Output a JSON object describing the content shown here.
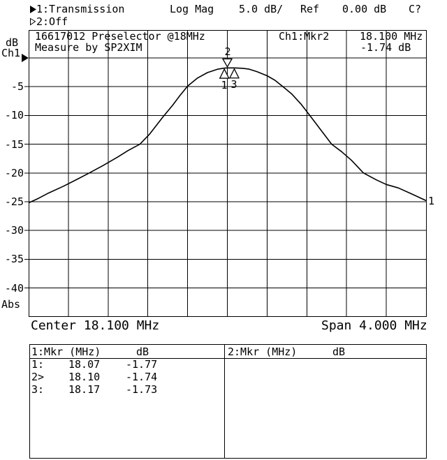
{
  "header": {
    "trace1": "1:Transmission",
    "format": "Log Mag",
    "scale": "5.0 dB/",
    "ref_label": "Ref",
    "ref_value": "0.00 dB",
    "cal_status": "C?",
    "trace2": "2:Off"
  },
  "y_axis": {
    "unit": "dB",
    "channel": "Ch1",
    "mode": "Abs"
  },
  "plot": {
    "title_line1": "16617012 Preselector @18MHz",
    "title_line2": "Measure by SP2XIM",
    "marker_readout": {
      "channel": "Ch1:Mkr2",
      "freq": "18.100 MHz",
      "level": "-1.74 dB"
    }
  },
  "x_axis": {
    "center": "Center 18.100 MHz",
    "span": "Span 4.000 MHz"
  },
  "marker_table": {
    "left": {
      "header": "1:Mkr (MHz)",
      "unit": "dB",
      "rows": [
        {
          "n": "1:",
          "freq": "18.07",
          "db": "-1.77"
        },
        {
          "n": "2>",
          "freq": "18.10",
          "db": "-1.74"
        },
        {
          "n": "3:",
          "freq": "18.17",
          "db": "-1.73"
        }
      ]
    },
    "right": {
      "header": "2:Mkr (MHz)",
      "unit": "dB",
      "rows": []
    }
  },
  "chart_data": {
    "type": "line",
    "title": "16617012 Preselector @18MHz",
    "subtitle": "Measure by SP2XIM",
    "x_range_mhz": [
      16.1,
      20.1
    ],
    "x_center_mhz": 18.1,
    "x_span_mhz": 4.0,
    "grid_x_divisions": 10,
    "ref_db": 0.0,
    "db_per_div": 5,
    "y_ticks_db": [
      -5,
      -10,
      -15,
      -20,
      -25,
      -30,
      -35,
      -40
    ],
    "y_mode": "Abs",
    "trace_name": "1",
    "trace_points_mhz_db": [
      [
        16.1,
        -25.2
      ],
      [
        16.2,
        -24.4
      ],
      [
        16.3,
        -23.5
      ],
      [
        16.45,
        -22.3
      ],
      [
        16.6,
        -21.0
      ],
      [
        16.71,
        -20.0
      ],
      [
        16.85,
        -18.7
      ],
      [
        17.0,
        -17.2
      ],
      [
        17.1,
        -16.1
      ],
      [
        17.22,
        -15.0
      ],
      [
        17.32,
        -13.2
      ],
      [
        17.41,
        -11.2
      ],
      [
        17.45,
        -10.3
      ],
      [
        17.55,
        -8.2
      ],
      [
        17.62,
        -6.6
      ],
      [
        17.7,
        -4.9
      ],
      [
        17.8,
        -3.5
      ],
      [
        17.9,
        -2.55
      ],
      [
        18.0,
        -1.97
      ],
      [
        18.07,
        -1.77
      ],
      [
        18.1,
        -1.74
      ],
      [
        18.17,
        -1.73
      ],
      [
        18.25,
        -1.8
      ],
      [
        18.32,
        -1.95
      ],
      [
        18.4,
        -2.4
      ],
      [
        18.5,
        -3.1
      ],
      [
        18.58,
        -3.9
      ],
      [
        18.66,
        -5.0
      ],
      [
        18.75,
        -6.3
      ],
      [
        18.84,
        -8.0
      ],
      [
        18.93,
        -10.0
      ],
      [
        19.04,
        -12.5
      ],
      [
        19.15,
        -15.0
      ],
      [
        19.25,
        -16.3
      ],
      [
        19.35,
        -17.8
      ],
      [
        19.47,
        -20.0
      ],
      [
        19.6,
        -21.2
      ],
      [
        19.7,
        -22.0
      ],
      [
        19.82,
        -22.6
      ],
      [
        19.95,
        -23.6
      ],
      [
        20.1,
        -24.8
      ]
    ],
    "markers": [
      {
        "n": "1",
        "mhz": 18.07,
        "db": -1.77,
        "shape": "up",
        "active": false
      },
      {
        "n": "2",
        "mhz": 18.1,
        "db": -1.74,
        "shape": "down",
        "active": true
      },
      {
        "n": "3",
        "mhz": 18.17,
        "db": -1.73,
        "shape": "up",
        "active": false
      }
    ],
    "colors": {
      "foreground": "#000000",
      "background": "#ffffff"
    }
  }
}
